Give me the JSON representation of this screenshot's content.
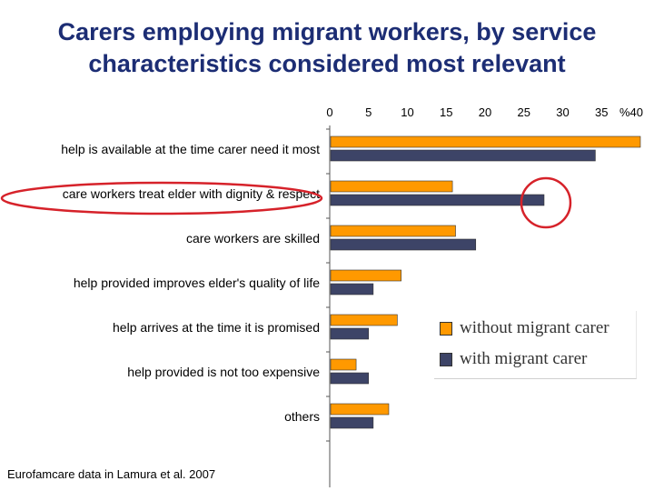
{
  "title": {
    "line1": "Carers employing migrant workers, by service",
    "line2": "characteristics considered most relevant"
  },
  "source": "Eurofamcare data in Lamura et al. 2007",
  "colors": {
    "without": "#ff9900",
    "with": "#3d4467",
    "highlight": "#d6222a"
  },
  "chart_data": {
    "type": "bar",
    "orientation": "horizontal",
    "categories": [
      "help is available at the time carer need it most",
      "care workers treat elder with dignity & respect",
      "care workers are skilled",
      "help provided improves elder's quality of life",
      "help arrives at the time it is promised",
      "help provided is not too expensive",
      "others"
    ],
    "series": [
      {
        "name": "without migrant carer",
        "values": [
          40,
          15.8,
          16.2,
          9.2,
          8.7,
          3.4,
          7.6
        ]
      },
      {
        "name": "with migrant carer",
        "values": [
          34.2,
          27.6,
          18.8,
          5.6,
          5.0,
          5.0,
          5.6
        ]
      }
    ],
    "x_ticks": [
      "0",
      "5",
      "10",
      "15",
      "20",
      "25",
      "30",
      "35",
      "40"
    ],
    "x_unit": "%",
    "xlim": [
      0,
      40
    ],
    "grid": false,
    "legend_position": "bottom-right",
    "highlighted_category": "care workers treat elder with dignity & respect"
  }
}
